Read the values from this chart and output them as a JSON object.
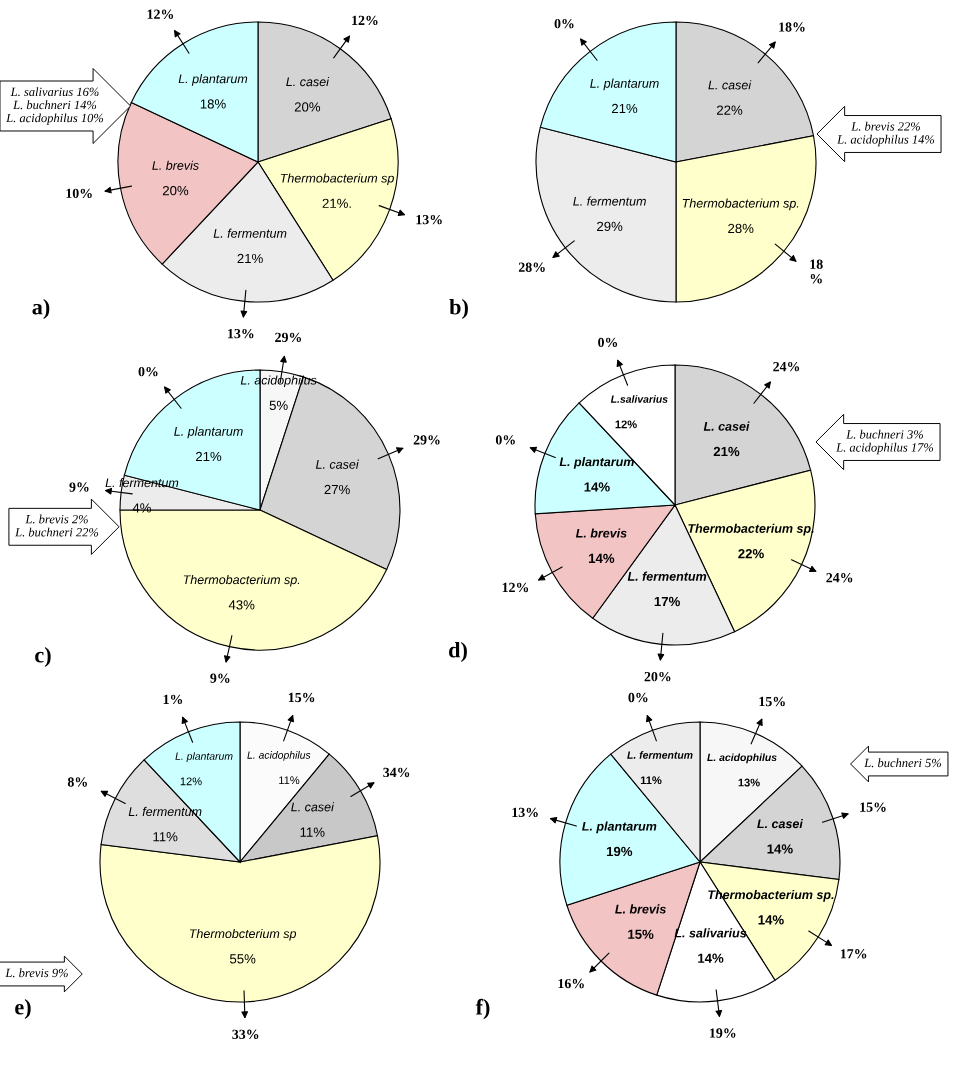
{
  "chart_data": [
    {
      "type": "pie",
      "title": "a)",
      "categories": [
        "L. casei",
        "Thermobacterium sp",
        "L. fermentum",
        "L. brevis",
        "L. plantarum"
      ],
      "values": [
        20,
        21,
        21,
        20,
        18
      ],
      "value_labels": [
        "20%",
        "21%.",
        "21%",
        "20%",
        "18%"
      ],
      "colors": [
        "#d4d4d4",
        "#ffffcc",
        "#ececec",
        "#f2c4c4",
        "#ccffff"
      ],
      "annotations": [
        "12%",
        "13%",
        "13%",
        "10%",
        "12%",
        "L. salivarius 16%\nL. buchneri 14%\nL. acidophilus 10%"
      ]
    },
    {
      "type": "pie",
      "title": "b)",
      "categories": [
        "L. casei",
        "Thermobacterium sp.",
        "L. fermentum",
        "L. plantarum"
      ],
      "values": [
        22,
        28,
        29,
        21
      ],
      "value_labels": [
        "22%",
        "28%",
        "29%",
        "21%"
      ],
      "colors": [
        "#d4d4d4",
        "#ffffcc",
        "#ececec",
        "#ccffff"
      ],
      "annotations": [
        "18%",
        "18\n%",
        "28%",
        "0%",
        "L. brevis 22%\nL. acidophilus 14%"
      ]
    },
    {
      "type": "pie",
      "title": "c)",
      "categories": [
        "L. acidophilus",
        "L. casei",
        "Thermobacterium sp.",
        "L. fermentum",
        "L. plantarum"
      ],
      "values": [
        5,
        27,
        43,
        4,
        21
      ],
      "value_labels": [
        "5%",
        "27%",
        "43%",
        "4%",
        "21%"
      ],
      "colors": [
        "#f7f7f7",
        "#d4d4d4",
        "#ffffcc",
        "#ececec",
        "#ccffff"
      ],
      "annotations": [
        "29%",
        "29%",
        "9%",
        "9%",
        "0%",
        "L. brevis 2%\nL. buchneri 22%"
      ]
    },
    {
      "type": "pie",
      "title": "d)",
      "categories": [
        "L. casei",
        "Thermobacterium sp.",
        "L. fermentum",
        "L. brevis",
        "L. plantarum",
        "L.salivarius"
      ],
      "values": [
        21,
        22,
        17,
        14,
        14,
        12
      ],
      "value_labels": [
        "21%",
        "22%",
        "17%",
        "14%",
        "14%",
        "12%"
      ],
      "colors": [
        "#d4d4d4",
        "#ffffcc",
        "#ececec",
        "#f2c4c4",
        "#ccffff",
        "#ffffff"
      ],
      "annotations": [
        "24%",
        "24%",
        "20%",
        "12%",
        "0%",
        "0%",
        "L. buchneri 3%\nL. acidophilus 17%"
      ]
    },
    {
      "type": "pie",
      "title": "e)",
      "categories": [
        "L. acidophilus",
        "L. casei",
        "Thermobcterium sp",
        "L. fermentum",
        "L. plantarum"
      ],
      "values": [
        11,
        11,
        55,
        11,
        12
      ],
      "value_labels": [
        "11%",
        "11%",
        "55%",
        "11%",
        "12%"
      ],
      "colors": [
        "#fbfbfb",
        "#c8c8c8",
        "#ffffcc",
        "#dedede",
        "#ccffff"
      ],
      "annotations": [
        "15%",
        "34%",
        "33%",
        "8%",
        "1%",
        "L. brevis 9%"
      ]
    },
    {
      "type": "pie",
      "title": "f)",
      "categories": [
        "L. acidophilus",
        "L. casei",
        "Thermobacterium sp.",
        "L. salivarius",
        "L. brevis",
        "L. plantarum",
        "L. fermentum"
      ],
      "values": [
        13,
        14,
        14,
        14,
        15,
        19,
        11
      ],
      "value_labels": [
        "13%",
        "14%",
        "14%",
        "14%",
        "15%",
        "19%",
        "11%"
      ],
      "colors": [
        "#f7f7f7",
        "#d4d4d4",
        "#ffffcc",
        "#ffffff",
        "#f2c4c4",
        "#ccffff",
        "#ececec"
      ],
      "annotations": [
        "15%",
        "15%",
        "17%",
        "19%",
        "16%",
        "13%",
        "0%",
        "L. buchneri 5%"
      ]
    }
  ]
}
